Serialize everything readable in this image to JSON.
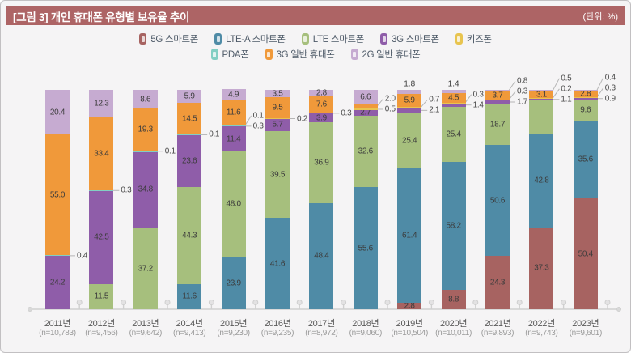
{
  "header": {
    "title": "[그림 3] 개인 휴대폰 유형별 보유율 추이",
    "unit_note": "(단위: %)"
  },
  "colors": {
    "title_bar": "#ad6465",
    "5g": "#a76361",
    "ltea": "#4f8ba6",
    "lte": "#a6bf7d",
    "3g_smart": "#8f5da9",
    "kids": "#e8c44f",
    "pda": "#82cfc3",
    "3g_feature": "#f0993a",
    "2g_feature": "#c6abd1",
    "axis": "#d9d9d9",
    "leader_line": "#b5b5b5"
  },
  "legend": {
    "row1_keys": [
      "5g",
      "ltea",
      "lte",
      "3g_smart",
      "kids"
    ],
    "row2_keys": [
      "pda",
      "3g_feature",
      "2g_feature"
    ]
  },
  "chart_data": {
    "type": "bar",
    "subtype": "stacked-percent-column",
    "unit": "%",
    "ylim": [
      0,
      100
    ],
    "grid": false,
    "legend_position": "top-center",
    "categories": [
      {
        "year": "2011년",
        "n": "(n=10,783)"
      },
      {
        "year": "2012년",
        "n": "(n=9,456)"
      },
      {
        "year": "2013년",
        "n": "(n=9,642)"
      },
      {
        "year": "2014년",
        "n": "(n=9,413)"
      },
      {
        "year": "2015년",
        "n": "(n=9,230)"
      },
      {
        "year": "2016년",
        "n": "(n=9,235)"
      },
      {
        "year": "2017년",
        "n": "(n=8,972)"
      },
      {
        "year": "2018년",
        "n": "(n=9,060)"
      },
      {
        "year": "2019년",
        "n": "(n=10,504)"
      },
      {
        "year": "2020년",
        "n": "(n=10,011)"
      },
      {
        "year": "2021년",
        "n": "(n=9,893)"
      },
      {
        "year": "2022년",
        "n": "(n=9,743)"
      },
      {
        "year": "2023년",
        "n": "(n=9,601)"
      }
    ],
    "label_mode_legend": {
      "i": "inside-segment",
      "o": "callout-right",
      "a": "above-bar",
      "n": "not-shown"
    },
    "series": [
      {
        "key": "5g",
        "name": "5G 스마트폰",
        "values": [
          null,
          null,
          null,
          null,
          null,
          null,
          null,
          null,
          2.8,
          8.8,
          24.3,
          37.3,
          50.4
        ],
        "label_modes": [
          null,
          null,
          null,
          null,
          null,
          null,
          null,
          null,
          "i",
          "i",
          "i",
          "i",
          "i"
        ]
      },
      {
        "key": "ltea",
        "name": "LTE-A 스마트폰",
        "values": [
          null,
          null,
          null,
          11.6,
          23.9,
          41.6,
          48.4,
          55.6,
          61.4,
          58.2,
          50.6,
          42.8,
          35.6
        ],
        "label_modes": [
          null,
          null,
          null,
          "i",
          "i",
          "i",
          "i",
          "i",
          "i",
          "i",
          "i",
          "i",
          "i"
        ]
      },
      {
        "key": "lte",
        "name": "LTE 스마트폰",
        "values": [
          null,
          11.5,
          37.2,
          44.3,
          48.0,
          39.5,
          36.9,
          32.6,
          25.4,
          25.4,
          18.7,
          15.0,
          9.6
        ],
        "label_modes": [
          null,
          "i",
          "i",
          "i",
          "i",
          "i",
          "i",
          "i",
          "i",
          "i",
          "i",
          "n",
          "i"
        ]
      },
      {
        "key": "3g_smart",
        "name": "3G 스마트폰",
        "values": [
          24.2,
          42.5,
          34.8,
          23.6,
          11.4,
          5.7,
          3.9,
          2.7,
          2.1,
          1.4,
          1.7,
          1.1,
          0.9
        ],
        "label_modes": [
          "i",
          "i",
          "i",
          "i",
          "i",
          "i",
          "i",
          "i",
          "o",
          "o",
          "o",
          "o",
          "o"
        ]
      },
      {
        "key": "kids",
        "name": "키즈폰",
        "values": [
          null,
          null,
          null,
          null,
          0.3,
          0.2,
          0.3,
          0.5,
          0.7,
          0.3,
          0.3,
          0.2,
          0.3
        ],
        "label_modes": [
          null,
          null,
          null,
          null,
          "o",
          "o",
          "o",
          "o",
          "o",
          "o",
          "o",
          "o",
          "o"
        ]
      },
      {
        "key": "pda",
        "name": "PDA폰",
        "values": [
          0.4,
          0.3,
          0.1,
          0.1,
          0.1,
          null,
          null,
          null,
          null,
          null,
          null,
          null,
          null
        ],
        "label_modes": [
          "o",
          "o",
          "o",
          "o",
          "o",
          null,
          null,
          null,
          null,
          null,
          null,
          null,
          null
        ]
      },
      {
        "key": "3g_feature",
        "name": "3G 일반 휴대폰",
        "values": [
          55.0,
          33.4,
          19.3,
          14.5,
          11.6,
          9.5,
          7.6,
          2.0,
          5.9,
          4.5,
          3.7,
          3.1,
          2.8
        ],
        "label_modes": [
          "i",
          "i",
          "i",
          "i",
          "i",
          "i",
          "i",
          "o",
          "i",
          "i",
          "i",
          "i",
          "i"
        ]
      },
      {
        "key": "2g_feature",
        "name": "2G 일반 휴대폰",
        "values": [
          20.4,
          12.3,
          8.6,
          5.9,
          4.9,
          3.5,
          2.8,
          6.6,
          1.8,
          1.4,
          0.8,
          0.5,
          0.4
        ],
        "label_modes": [
          "i",
          "i",
          "i",
          "i",
          "i",
          "i",
          "i",
          "i",
          "a",
          "a",
          "o",
          "o",
          "o"
        ]
      }
    ]
  }
}
